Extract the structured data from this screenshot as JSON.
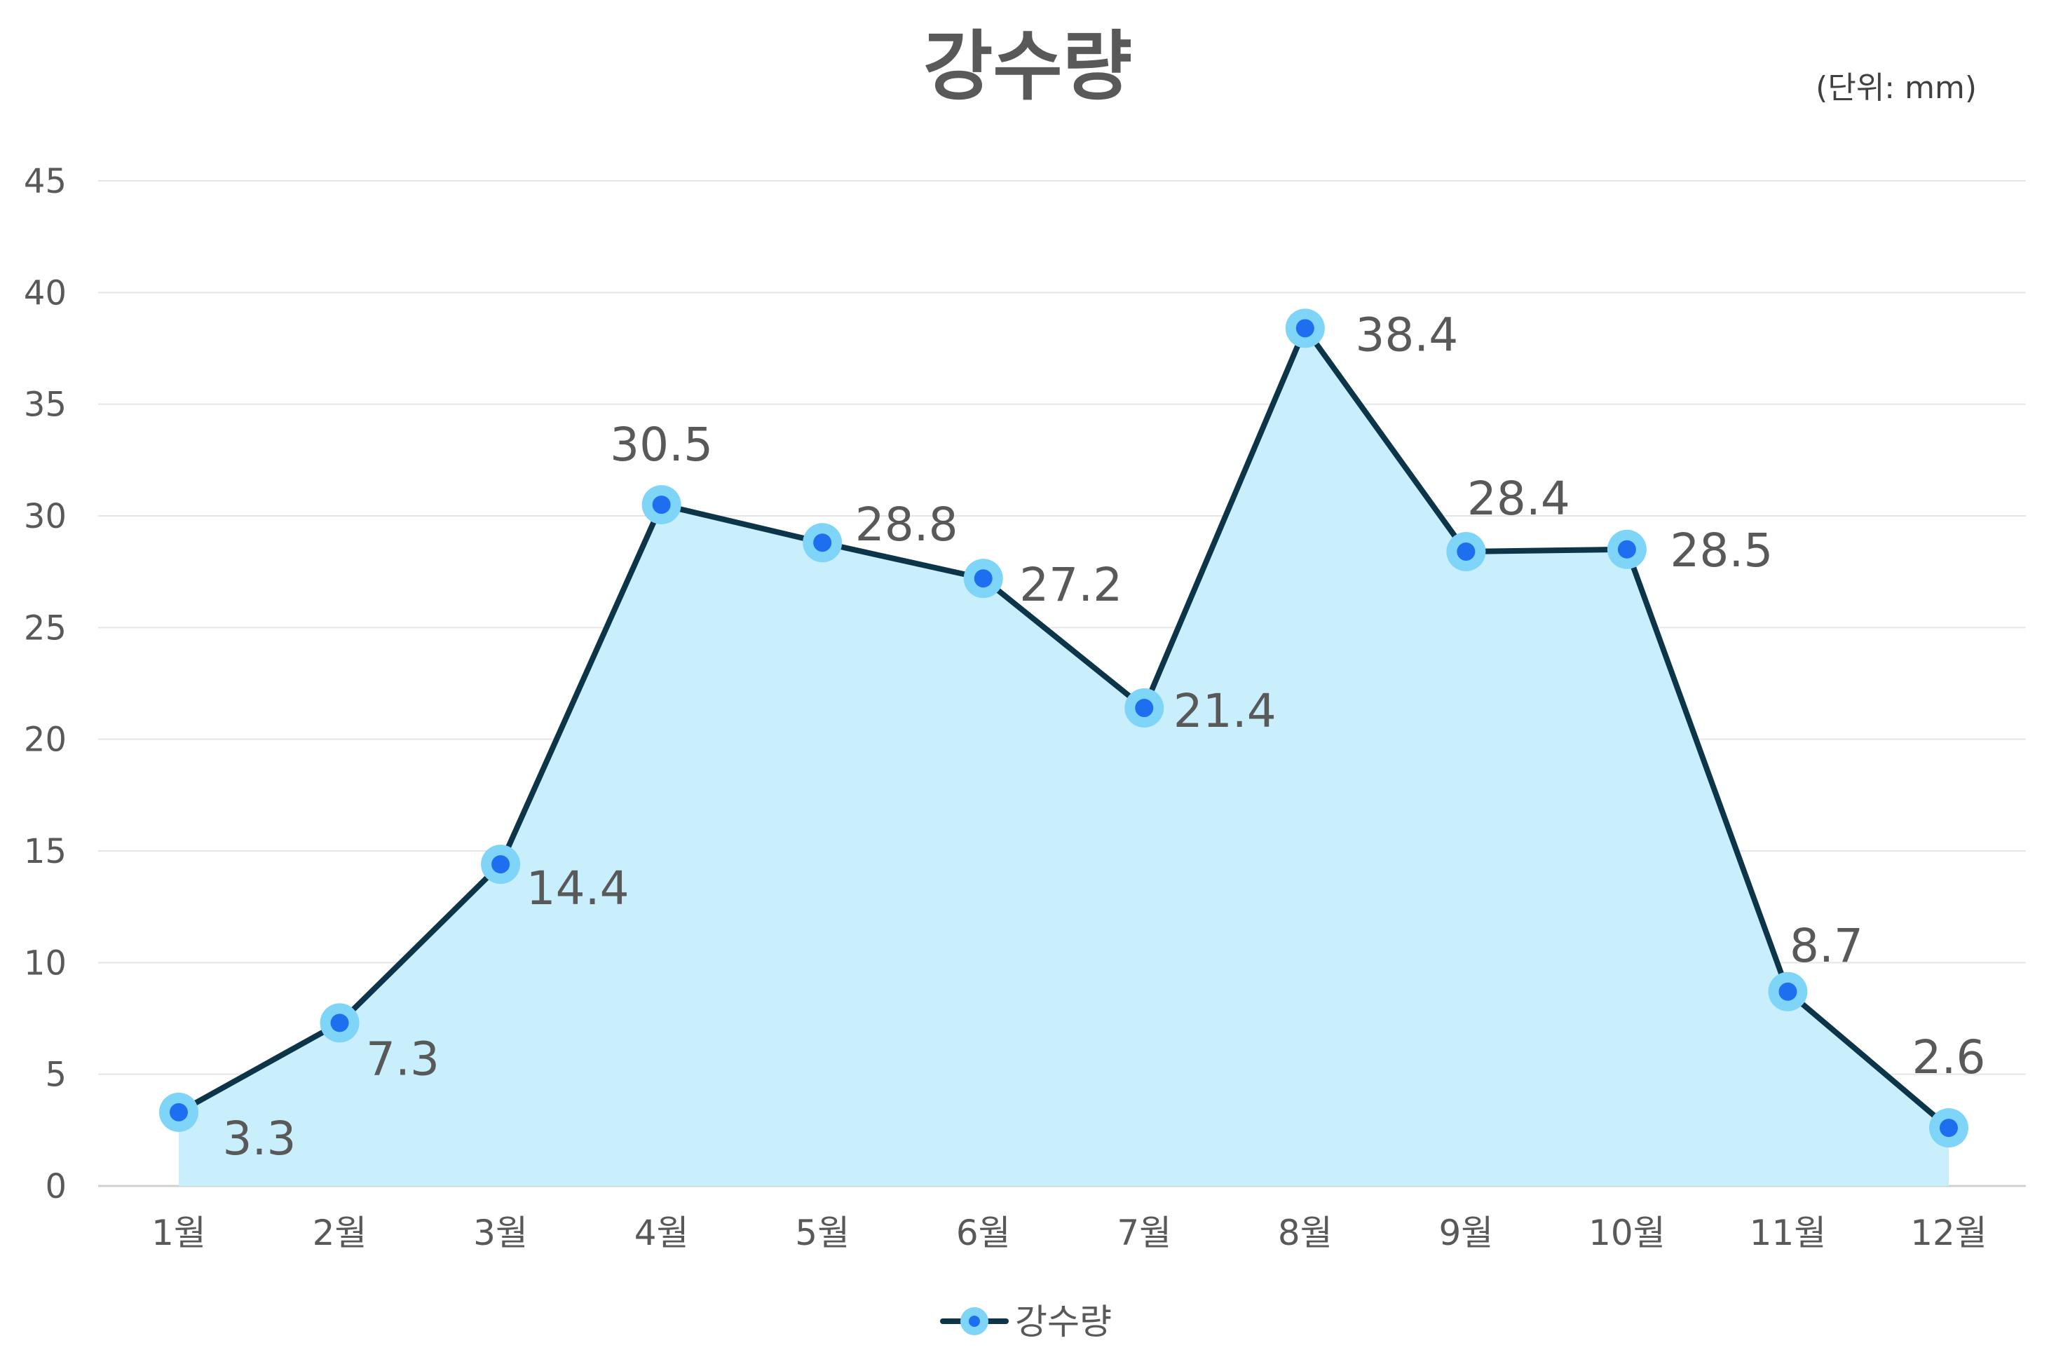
{
  "chart_data": {
    "type": "area",
    "title": "강수량",
    "unit_label": "(단위: mm)",
    "categories": [
      "1월",
      "2월",
      "3월",
      "4월",
      "5월",
      "6월",
      "7월",
      "8월",
      "9월",
      "10월",
      "11월",
      "12월"
    ],
    "series": [
      {
        "name": "강수량",
        "values": [
          3.3,
          7.3,
          14.4,
          30.5,
          28.8,
          27.2,
          21.4,
          38.4,
          28.4,
          28.5,
          8.7,
          2.6
        ],
        "labels": [
          "3.3",
          "7.3",
          "14.4",
          "30.5",
          "28.8",
          "27.2",
          "21.4",
          "38.4",
          "28.4",
          "28.5",
          "8.7",
          "2.6"
        ]
      }
    ],
    "ylim": [
      0,
      45
    ],
    "yticks": [
      "0",
      "5",
      "10",
      "15",
      "20",
      "25",
      "30",
      "35",
      "40",
      "45"
    ],
    "grid": true,
    "legend": "bottom-center",
    "colors": {
      "line": "#0d3549",
      "fill": "#c9effd",
      "marker_outer": "#7fd5f7",
      "marker_inner": "#1e6ff0"
    }
  }
}
